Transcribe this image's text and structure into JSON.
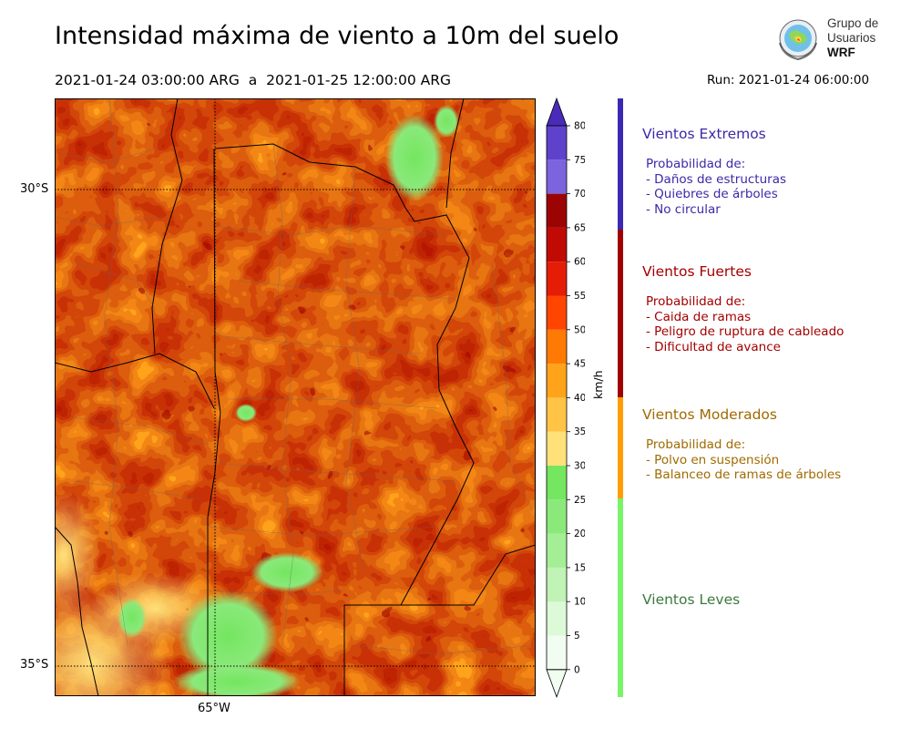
{
  "header": {
    "title": "Intensidad máxima de viento a 10m del suelo",
    "period": "2021-01-24 03:00:00 ARG  a  2021-01-25 12:00:00 ARG",
    "run": "Run: 2021-01-24 06:00:00"
  },
  "logo": {
    "line1": "Grupo de",
    "line2": "Usuarios",
    "line3": "WRF"
  },
  "map": {
    "lat_labels": [
      "30°S",
      "35°S"
    ],
    "lon_label": "65°W"
  },
  "colorbar": {
    "unit": "km/h",
    "levels": [
      {
        "value": 0,
        "color": "#f0fdf0"
      },
      {
        "value": 5,
        "color": "#dcf9d8"
      },
      {
        "value": 10,
        "color": "#c0f3b5"
      },
      {
        "value": 15,
        "color": "#a4ee96"
      },
      {
        "value": 20,
        "color": "#8ae97a"
      },
      {
        "value": 25,
        "color": "#74e660"
      },
      {
        "value": 30,
        "color": "#ffe17a"
      },
      {
        "value": 35,
        "color": "#ffc445"
      },
      {
        "value": 40,
        "color": "#ffa31a"
      },
      {
        "value": 45,
        "color": "#ff7a05"
      },
      {
        "value": 50,
        "color": "#ff4500"
      },
      {
        "value": 55,
        "color": "#e51d06"
      },
      {
        "value": 60,
        "color": "#c20a05"
      },
      {
        "value": 65,
        "color": "#9c0404"
      },
      {
        "value": 70,
        "color": "#7b64dd"
      },
      {
        "value": 75,
        "color": "#5e42cc"
      },
      {
        "value": 80,
        "color": "#4a2ab8"
      }
    ],
    "tick_labels": [
      "0",
      "5",
      "10",
      "15",
      "20",
      "25",
      "30",
      "35",
      "40",
      "45",
      "50",
      "55",
      "60",
      "65",
      "70",
      "75",
      "80"
    ]
  },
  "categories": [
    {
      "id": "extremos",
      "title": "Vientos Extremos",
      "color": "#3b29a8",
      "bar_color": "#3b29b4",
      "lines": [
        "Probabilidad de:",
        "- Daños de estructuras",
        "- Quiebres de árboles",
        "- No circular"
      ]
    },
    {
      "id": "fuertes",
      "title": "Vientos Fuertes",
      "color": "#a30000",
      "bar_color": "#a00000",
      "lines": [
        "Probabilidad de:",
        "- Caida de ramas",
        "- Peligro de ruptura de cableado",
        "- Dificultad de avance"
      ]
    },
    {
      "id": "moderados",
      "title": "Vientos Moderados",
      "color": "#a06a00",
      "bar_color": "#ff9e00",
      "lines": [
        "Probabilidad de:",
        "- Polvo en suspensión",
        "- Balanceo de ramas de árboles"
      ]
    },
    {
      "id": "leves",
      "title": "Vientos Leves",
      "color": "#3c7a3c",
      "bar_color": "#7af26a",
      "lines": []
    }
  ]
}
